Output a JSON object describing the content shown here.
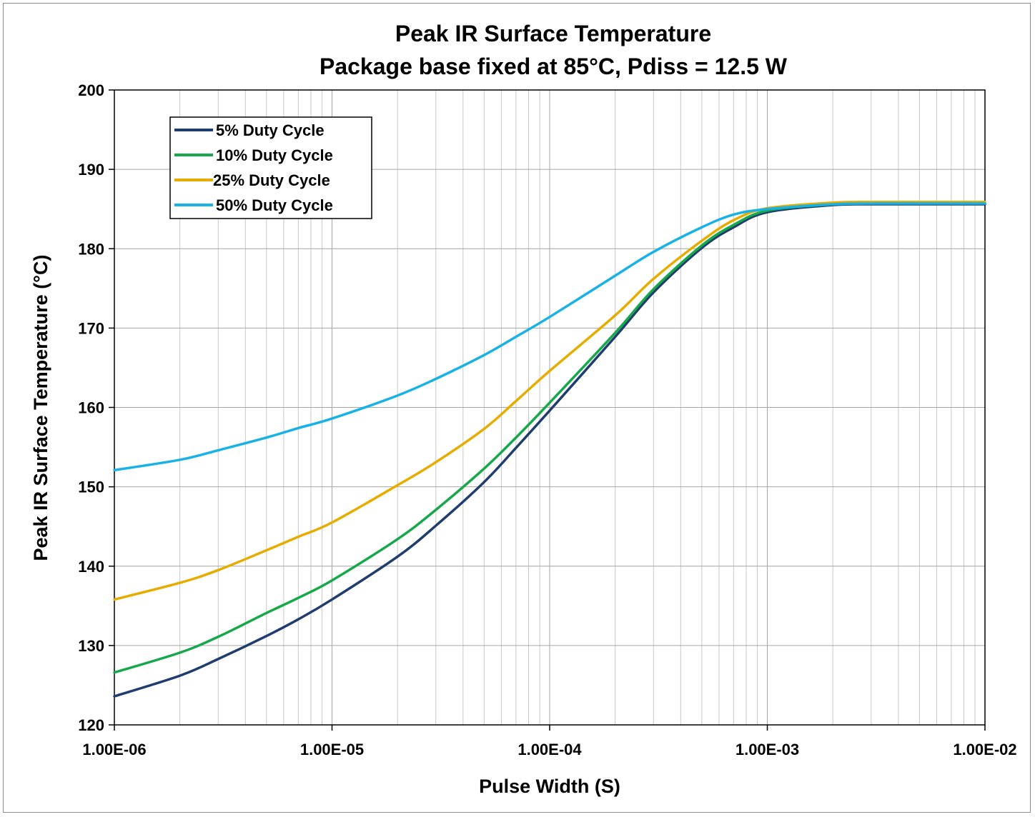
{
  "chart_data": {
    "type": "line",
    "title": "Peak IR Surface Temperature",
    "subtitle": "Package base fixed at 85°C, Pdiss = 12.5 W",
    "xlabel": "Pulse Width (S)",
    "ylabel": "Peak IR Surface Temperature (°C)",
    "x_scale": "log",
    "xlim": [
      1e-06,
      0.01
    ],
    "ylim": [
      120,
      200
    ],
    "x_ticks": [
      1e-06,
      1e-05,
      0.0001,
      0.001,
      0.01
    ],
    "x_tick_labels": [
      "1.00E-06",
      "1.00E-05",
      "1.00E-04",
      "1.00E-03",
      "1.00E-02"
    ],
    "y_ticks": [
      120,
      130,
      140,
      150,
      160,
      170,
      180,
      190,
      200
    ],
    "y_tick_labels": [
      "120",
      "130",
      "140",
      "150",
      "160",
      "170",
      "180",
      "190",
      "200"
    ],
    "grid": true,
    "legend_position": "top-left",
    "x": [
      1e-06,
      2e-06,
      3e-06,
      5e-06,
      7e-06,
      1e-05,
      2e-05,
      3e-05,
      5e-05,
      7e-05,
      0.0001,
      0.0002,
      0.0003,
      0.0005,
      0.0007,
      0.001,
      0.002,
      0.003,
      0.005,
      0.01
    ],
    "series": [
      {
        "name": "5% Duty Cycle",
        "color": "#1f3d6e",
        "values": [
          123.6,
          126.2,
          128.3,
          131.2,
          133.3,
          135.8,
          141.2,
          145.1,
          150.6,
          154.9,
          159.6,
          168.9,
          174.5,
          180.1,
          182.7,
          184.6,
          185.5,
          185.6,
          185.6,
          185.6
        ]
      },
      {
        "name": "10% Duty Cycle",
        "color": "#16a84a",
        "values": [
          126.6,
          129.1,
          131.1,
          134.1,
          136.0,
          138.2,
          143.4,
          147.1,
          152.3,
          156.2,
          160.6,
          169.4,
          174.9,
          180.4,
          183.0,
          184.8,
          185.6,
          185.7,
          185.7,
          185.7
        ]
      },
      {
        "name": "25% Duty Cycle",
        "color": "#e6ac00",
        "values": [
          135.8,
          137.9,
          139.5,
          142.0,
          143.7,
          145.5,
          150.2,
          153.1,
          157.3,
          160.8,
          164.6,
          171.6,
          176.2,
          181.0,
          183.6,
          185.1,
          185.8,
          185.9,
          185.9,
          185.9
        ]
      },
      {
        "name": "50% Duty Cycle",
        "color": "#19b2e6",
        "values": [
          152.1,
          153.4,
          154.6,
          156.2,
          157.4,
          158.6,
          161.5,
          163.6,
          166.6,
          168.9,
          171.4,
          176.6,
          179.6,
          182.7,
          184.3,
          185.0,
          185.6,
          185.7,
          185.7,
          185.7
        ]
      }
    ]
  }
}
